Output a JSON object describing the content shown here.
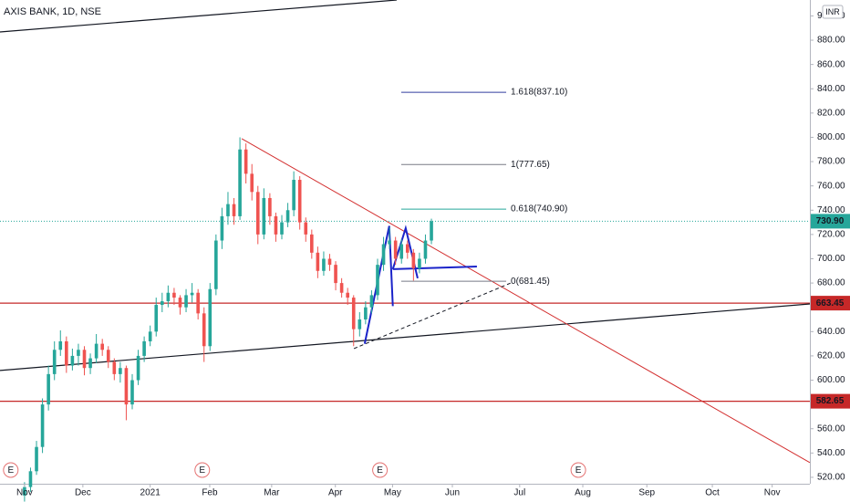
{
  "chart_data": {
    "type": "candlestick",
    "title": "AXIS BANK, 1D, NSE",
    "currency": "INR",
    "up_color": "#26a69a",
    "down_color": "#ef5350",
    "xlim": [
      -8.2,
      262.5
    ],
    "ylim": [
      514.7,
      913.1
    ],
    "xticks": [
      {
        "value": 0,
        "label": "Nov"
      },
      {
        "value": 19.5,
        "label": "Dec"
      },
      {
        "value": 42,
        "label": "2021"
      },
      {
        "value": 61.9,
        "label": "Feb"
      },
      {
        "value": 82.6,
        "label": "Mar"
      },
      {
        "value": 103.9,
        "label": "Apr"
      },
      {
        "value": 123,
        "label": "May"
      },
      {
        "value": 143,
        "label": "Jun"
      },
      {
        "value": 165.5,
        "label": "Jul"
      },
      {
        "value": 186.6,
        "label": "Aug"
      },
      {
        "value": 208,
        "label": "Sep"
      },
      {
        "value": 229.9,
        "label": "Oct"
      },
      {
        "value": 249.9,
        "label": "Nov"
      }
    ],
    "yticks": [
      {
        "value": 520,
        "label": "520.00"
      },
      {
        "value": 540,
        "label": "540.00"
      },
      {
        "value": 560,
        "label": "560.00"
      },
      {
        "value": 580,
        "label": "580.00"
      },
      {
        "value": 600,
        "label": "600.00"
      },
      {
        "value": 620,
        "label": "620.00"
      },
      {
        "value": 640,
        "label": "640.00"
      },
      {
        "value": 660,
        "label": "660.00"
      },
      {
        "value": 680,
        "label": "680.00"
      },
      {
        "value": 700,
        "label": "700.00"
      },
      {
        "value": 720,
        "label": "720.00"
      },
      {
        "value": 740,
        "label": "740.00"
      },
      {
        "value": 760,
        "label": "760.00"
      },
      {
        "value": 780,
        "label": "780.00"
      },
      {
        "value": 800,
        "label": "800.00"
      },
      {
        "value": 820,
        "label": "820.00"
      },
      {
        "value": 840,
        "label": "840.00"
      },
      {
        "value": 860,
        "label": "860.00"
      },
      {
        "value": 880,
        "label": "880.00"
      },
      {
        "value": 900,
        "label": "900.00"
      }
    ],
    "x": [
      0,
      2,
      4,
      6,
      8,
      10,
      12,
      14,
      16,
      18,
      20,
      22,
      24,
      26,
      28,
      30,
      32,
      34,
      36,
      38,
      40,
      42,
      44,
      46,
      48,
      50,
      52,
      54,
      56,
      58,
      60,
      62,
      64,
      66,
      68,
      70,
      72,
      74,
      76,
      78,
      80,
      82,
      84,
      86,
      88,
      90,
      92,
      94,
      96,
      98,
      100,
      102,
      104,
      106,
      108,
      110,
      112,
      114,
      116,
      118,
      120,
      122,
      124,
      126,
      128,
      130,
      132,
      134,
      136
    ],
    "open": [
      505,
      512,
      525,
      545,
      580,
      605,
      625,
      632,
      612,
      620,
      625,
      610,
      618,
      630,
      625,
      615,
      605,
      610,
      580,
      600,
      620,
      632,
      640,
      662,
      665,
      672,
      668,
      660,
      670,
      672,
      655,
      628,
      675,
      715,
      735,
      745,
      735,
      790,
      770,
      755,
      720,
      750,
      735,
      720,
      730,
      740,
      765,
      730,
      720,
      705,
      690,
      700,
      695,
      680,
      672,
      668,
      642,
      650,
      660,
      670,
      695,
      712,
      715,
      700,
      712,
      705,
      692,
      700,
      715
    ],
    "high": [
      516,
      528,
      550,
      585,
      612,
      632,
      641,
      636,
      626,
      630,
      628,
      622,
      638,
      634,
      628,
      618,
      615,
      612,
      605,
      625,
      636,
      645,
      668,
      672,
      678,
      676,
      670,
      675,
      680,
      675,
      660,
      680,
      720,
      742,
      755,
      750,
      800,
      795,
      778,
      760,
      758,
      754,
      738,
      736,
      746,
      772,
      768,
      734,
      724,
      710,
      706,
      704,
      698,
      684,
      676,
      670,
      656,
      665,
      674,
      700,
      718,
      726,
      718,
      716,
      715,
      708,
      705,
      720,
      733
    ],
    "low": [
      500,
      508,
      522,
      540,
      575,
      600,
      620,
      606,
      608,
      612,
      604,
      605,
      614,
      620,
      610,
      600,
      598,
      567,
      576,
      596,
      615,
      628,
      636,
      656,
      660,
      662,
      654,
      656,
      664,
      650,
      615,
      624,
      670,
      708,
      728,
      728,
      732,
      762,
      748,
      712,
      716,
      728,
      714,
      716,
      726,
      735,
      724,
      714,
      700,
      684,
      686,
      690,
      674,
      668,
      662,
      628,
      636,
      646,
      655,
      666,
      690,
      708,
      695,
      696,
      700,
      682,
      688,
      696,
      712
    ],
    "close": [
      512,
      525,
      545,
      580,
      605,
      625,
      632,
      612,
      620,
      625,
      610,
      618,
      630,
      625,
      615,
      605,
      610,
      580,
      600,
      620,
      632,
      640,
      662,
      665,
      672,
      668,
      660,
      670,
      672,
      655,
      628,
      675,
      715,
      735,
      745,
      735,
      790,
      770,
      755,
      720,
      750,
      735,
      720,
      730,
      740,
      765,
      730,
      720,
      705,
      690,
      700,
      695,
      680,
      672,
      668,
      642,
      650,
      660,
      670,
      695,
      712,
      715,
      700,
      712,
      705,
      692,
      700,
      715,
      730.9
    ],
    "last_price": {
      "value": 730.9,
      "label": "730.90",
      "color": "#26a69a"
    },
    "levels": [
      {
        "value": 663.45,
        "color": "#c62828"
      },
      {
        "value": 582.65,
        "color": "#c62828"
      }
    ],
    "fib": {
      "x": [
        125.9,
        161
      ],
      "levels": [
        {
          "value": 837.1,
          "label": "1.618(837.10)",
          "color": "#303f9f"
        },
        {
          "value": 777.65,
          "label": "1(777.65)",
          "color": "#787b86"
        },
        {
          "value": 740.9,
          "label": "0.618(740.90)",
          "color": "#26a69a"
        },
        {
          "value": 681.45,
          "label": "0(681.45)",
          "color": "#787b86"
        }
      ]
    },
    "trendlines": [
      {
        "color": "#131722",
        "width": 1.2,
        "dash": false,
        "points": [
          [
            -8.2,
            886.8
          ],
          [
            124.4,
            913.1
          ]
        ]
      },
      {
        "color": "#131722",
        "width": 1.2,
        "dash": false,
        "points": [
          [
            -8.2,
            608.0
          ],
          [
            262.5,
            662.8
          ]
        ]
      },
      {
        "color": "#d32f2f",
        "width": 1,
        "dash": false,
        "points": [
          [
            72.6,
            798.9
          ],
          [
            262.5,
            532.1
          ]
        ]
      },
      {
        "color": "#131722",
        "width": 1,
        "dash": true,
        "points": [
          [
            110.1,
            626
          ],
          [
            162.5,
            680
          ]
        ]
      },
      {
        "color": "#1a23c9",
        "width": 2,
        "dash": false,
        "points": [
          [
            113.7,
            630
          ],
          [
            121.9,
            727
          ],
          [
            123.1,
            661
          ]
        ]
      },
      {
        "color": "#1a23c9",
        "width": 2,
        "dash": false,
        "points": [
          [
            123.1,
            691.4
          ],
          [
            151.2,
            693.6
          ]
        ]
      },
      {
        "color": "#1a23c9",
        "width": 2,
        "dash": false,
        "points": [
          [
            123.1,
            691.4
          ],
          [
            127.4,
            725.2
          ],
          [
            131.4,
            683.9
          ]
        ]
      }
    ],
    "events": [
      {
        "x": -4.6,
        "label": "E"
      },
      {
        "x": 59.4,
        "label": "E"
      },
      {
        "x": 118.8,
        "label": "E"
      },
      {
        "x": 185.1,
        "label": "E"
      }
    ]
  }
}
